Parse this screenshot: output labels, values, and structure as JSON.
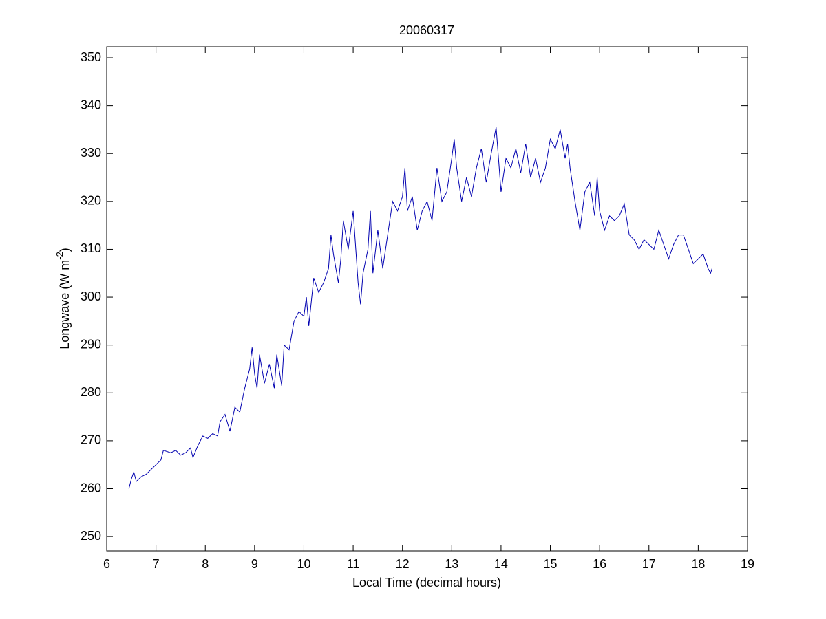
{
  "chart_data": {
    "type": "line",
    "title": "20060317",
    "x_label": "Local Time (decimal hours)",
    "y_label": {
      "text": "Longwave (W m",
      "superscript": "-2",
      "suffix": ")"
    },
    "xlim": [
      6,
      19
    ],
    "ylim": [
      247,
      352.3
    ],
    "xticks": [
      6,
      7,
      8,
      9,
      10,
      11,
      12,
      13,
      14,
      15,
      16,
      17,
      18,
      19
    ],
    "yticks": [
      250,
      260,
      270,
      280,
      290,
      300,
      310,
      320,
      330,
      340,
      350
    ],
    "series": [
      {
        "color": "#0000b0",
        "x": [
          6.45,
          6.5,
          6.55,
          6.6,
          6.7,
          6.8,
          6.9,
          7.0,
          7.1,
          7.15,
          7.3,
          7.4,
          7.5,
          7.6,
          7.7,
          7.75,
          7.85,
          7.95,
          8.05,
          8.15,
          8.25,
          8.3,
          8.4,
          8.5,
          8.6,
          8.7,
          8.8,
          8.9,
          8.95,
          9.0,
          9.05,
          9.1,
          9.2,
          9.3,
          9.4,
          9.45,
          9.55,
          9.6,
          9.7,
          9.8,
          9.9,
          10.0,
          10.05,
          10.1,
          10.2,
          10.3,
          10.4,
          10.5,
          10.55,
          10.6,
          10.7,
          10.75,
          10.8,
          10.9,
          11.0,
          11.1,
          11.15,
          11.2,
          11.3,
          11.35,
          11.4,
          11.5,
          11.6,
          11.7,
          11.8,
          11.9,
          12.0,
          12.05,
          12.1,
          12.2,
          12.3,
          12.4,
          12.5,
          12.6,
          12.7,
          12.8,
          12.9,
          13.0,
          13.05,
          13.1,
          13.2,
          13.3,
          13.4,
          13.5,
          13.6,
          13.7,
          13.8,
          13.9,
          14.0,
          14.1,
          14.2,
          14.3,
          14.4,
          14.5,
          14.6,
          14.7,
          14.8,
          14.9,
          15.0,
          15.1,
          15.2,
          15.3,
          15.35,
          15.4,
          15.5,
          15.6,
          15.7,
          15.8,
          15.9,
          15.95,
          16.0,
          16.1,
          16.2,
          16.3,
          16.4,
          16.5,
          16.6,
          16.7,
          16.8,
          16.9,
          17.0,
          17.1,
          17.2,
          17.3,
          17.4,
          17.5,
          17.6,
          17.7,
          17.8,
          17.9,
          18.0,
          18.1,
          18.2,
          18.25,
          18.28
        ],
        "values": [
          260,
          262,
          263.5,
          261.5,
          262.5,
          263,
          264,
          265,
          266,
          268,
          267.5,
          268,
          267,
          267.5,
          268.5,
          266.5,
          269,
          271,
          270.5,
          271.5,
          271,
          274,
          275.5,
          272,
          277,
          276,
          281,
          285,
          289.5,
          284,
          281,
          288,
          282,
          286,
          281,
          288,
          281.5,
          290,
          289,
          295,
          297,
          296,
          300,
          294,
          304,
          301,
          303,
          306,
          313,
          309,
          303,
          308,
          316,
          310,
          318,
          303,
          298.5,
          305,
          310,
          318,
          305,
          314,
          306,
          313,
          320,
          318,
          321,
          327,
          318,
          321,
          314,
          318,
          320,
          316,
          327,
          320,
          322,
          329,
          333,
          327,
          320,
          325,
          321,
          327,
          331,
          324,
          330,
          335.5,
          322,
          329,
          327,
          331,
          326,
          332,
          325,
          329,
          324,
          327,
          333,
          331,
          335,
          329,
          332,
          327,
          320,
          314,
          322,
          324,
          317,
          325,
          318,
          314,
          317,
          316,
          317,
          319.5,
          313,
          312,
          310,
          312,
          311,
          310,
          314,
          311,
          308,
          311,
          313,
          313,
          310,
          307,
          308,
          309,
          306,
          305,
          306
        ]
      }
    ]
  }
}
